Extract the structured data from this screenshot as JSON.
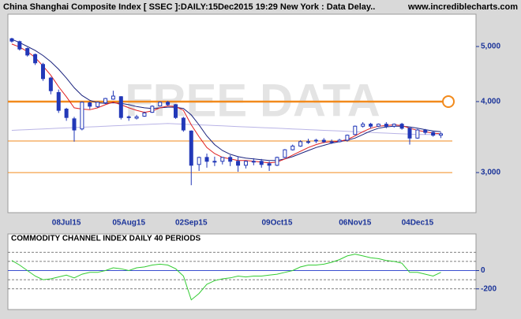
{
  "chart_data": [
    {
      "type": "candlestick",
      "title": "China Shanghai Composite Index [ SSEC ]:DAILY:15Dec2015 19:29 New York : Data Delay..",
      "source": "www.incrediblecharts.com",
      "watermark": "FREE DATA",
      "categories": [
        null,
        null,
        null,
        null,
        null,
        null,
        null,
        "08Jul15",
        null,
        null,
        null,
        null,
        null,
        null,
        null,
        "05Aug15",
        null,
        null,
        null,
        null,
        null,
        null,
        null,
        "02Sep15",
        null,
        null,
        null,
        null,
        null,
        null,
        null,
        null,
        null,
        null,
        "09Oct15",
        null,
        null,
        null,
        null,
        null,
        null,
        null,
        null,
        null,
        "06Nov15",
        null,
        null,
        null,
        null,
        null,
        null,
        null,
        "04Dec15",
        null,
        null,
        null,
        null,
        null,
        null,
        null
      ],
      "open": [
        5160,
        5100,
        4960,
        4840,
        4650,
        4400,
        4150,
        3880,
        3730,
        3580,
        3980,
        3920,
        3980,
        4040,
        4080,
        3760,
        3740,
        3770,
        3830,
        3930,
        3990,
        3950,
        3740,
        3550,
        3100,
        3190,
        3140,
        3140,
        3190,
        3140,
        3090,
        3140,
        3140,
        3110,
        3090,
        3190,
        3290,
        3340,
        3390,
        3410,
        3420,
        3400,
        3400,
        3420,
        3500,
        3620,
        3650,
        3620,
        3650,
        3620,
        3650,
        3590,
        3450,
        3560,
        3530,
        3490,
        null,
        null,
        null,
        null
      ],
      "high": [
        5180,
        5120,
        4980,
        4860,
        4680,
        4420,
        4200,
        3900,
        3760,
        4000,
        4000,
        4000,
        4060,
        4180,
        4090,
        3780,
        3790,
        3840,
        3940,
        4000,
        4010,
        3960,
        3760,
        3560,
        3200,
        3240,
        3200,
        3180,
        3220,
        3200,
        3150,
        3180,
        3170,
        3140,
        3200,
        3300,
        3360,
        3420,
        3440,
        3440,
        3450,
        3430,
        3440,
        3500,
        3630,
        3680,
        3670,
        3660,
        3680,
        3660,
        3670,
        3600,
        3580,
        3580,
        3550,
        3530,
        null,
        null,
        null,
        null
      ],
      "low": [
        5080,
        4920,
        4800,
        4640,
        4350,
        4120,
        3820,
        3700,
        3400,
        3560,
        3880,
        3900,
        3960,
        4030,
        3720,
        3700,
        3720,
        3760,
        3820,
        3920,
        3930,
        3730,
        3540,
        2850,
        3020,
        3060,
        3080,
        3100,
        3080,
        3010,
        3050,
        3090,
        3060,
        3020,
        3080,
        3180,
        3280,
        3330,
        3370,
        3380,
        3380,
        3370,
        3390,
        3400,
        3490,
        3600,
        3590,
        3610,
        3590,
        3600,
        3570,
        3360,
        3440,
        3500,
        3470,
        3450,
        null,
        null,
        null,
        null
      ],
      "close": [
        5110,
        4950,
        4830,
        4680,
        4390,
        4180,
        3860,
        3750,
        3565,
        3990,
        3925,
        3990,
        4050,
        4090,
        3750,
        3750,
        3760,
        3820,
        3925,
        3990,
        3950,
        3750,
        3565,
        3090,
        3190,
        3140,
        3140,
        3190,
        3140,
        3090,
        3140,
        3140,
        3100,
        3090,
        3190,
        3290,
        3340,
        3400,
        3400,
        3420,
        3400,
        3400,
        3420,
        3490,
        3620,
        3650,
        3620,
        3650,
        3620,
        3650,
        3590,
        3450,
        3565,
        3530,
        3490,
        3510,
        null,
        null,
        null,
        null
      ],
      "color": "#2238b8",
      "overlays": [
        {
          "color": "#b9b4e6",
          "values": [
            3560,
            3565,
            3570,
            3575,
            3580,
            3585,
            3590,
            3595,
            3600,
            3605,
            3610,
            3615,
            3620,
            3625,
            3630,
            3635,
            3640,
            3645,
            3650,
            3655,
            3660,
            3655,
            3650,
            3645,
            3640,
            3635,
            3630,
            3625,
            3620,
            3615,
            3610,
            3605,
            3600,
            3595,
            3590,
            3585,
            3580,
            3575,
            3570,
            3565,
            3560,
            3555,
            3550,
            3545,
            3540,
            3535,
            3530,
            3525,
            3520,
            3515,
            3510,
            3505,
            3500,
            3500,
            3500,
            3500,
            null,
            null,
            null,
            null
          ]
        },
        {
          "color": "#1a237e",
          "values": [
            5150,
            5080,
            5000,
            4920,
            4820,
            4700,
            4560,
            4400,
            4230,
            4100,
            4020,
            3980,
            3970,
            3980,
            3970,
            3950,
            3920,
            3900,
            3890,
            3900,
            3910,
            3910,
            3890,
            3790,
            3640,
            3480,
            3360,
            3280,
            3230,
            3200,
            3180,
            3170,
            3160,
            3150,
            3150,
            3170,
            3200,
            3240,
            3280,
            3320,
            3350,
            3380,
            3400,
            3420,
            3450,
            3500,
            3550,
            3590,
            3610,
            3620,
            3620,
            3610,
            3590,
            3570,
            3550,
            3540,
            null,
            null,
            null,
            null
          ]
        },
        {
          "color": "#e02020",
          "values": [
            5050,
            4990,
            4900,
            4780,
            4620,
            4450,
            4250,
            4080,
            3900,
            3880,
            3870,
            3900,
            3950,
            3990,
            3950,
            3900,
            3860,
            3830,
            3850,
            3900,
            3930,
            3920,
            3860,
            3640,
            3470,
            3320,
            3240,
            3190,
            3170,
            3150,
            3150,
            3140,
            3130,
            3120,
            3130,
            3170,
            3220,
            3270,
            3320,
            3360,
            3390,
            3400,
            3405,
            3430,
            3480,
            3540,
            3590,
            3620,
            3630,
            3640,
            3630,
            3590,
            3560,
            3540,
            3520,
            3510,
            null,
            null,
            null,
            null
          ]
        }
      ],
      "levels": [
        4000,
        3410,
        3000
      ],
      "level_color": "#f28a1c",
      "log_scale": true,
      "ylim": [
        2550,
        5700
      ],
      "yticks": [
        {
          "value": 5000,
          "label": "5,000"
        },
        {
          "value": 4000,
          "label": "4,000"
        },
        {
          "value": 3000,
          "label": "3,000"
        }
      ]
    },
    {
      "type": "line",
      "title": "COMMODITY CHANNEL INDEX DAILY 40 PERIODS",
      "values": [
        110,
        60,
        0,
        -60,
        -100,
        -90,
        -70,
        -50,
        -80,
        -40,
        -20,
        -20,
        0,
        30,
        20,
        0,
        30,
        40,
        60,
        70,
        60,
        20,
        -60,
        -320,
        -250,
        -150,
        -110,
        -90,
        -80,
        -60,
        -70,
        -60,
        -60,
        -50,
        -40,
        -20,
        0,
        40,
        60,
        60,
        70,
        90,
        120,
        160,
        180,
        160,
        140,
        130,
        110,
        100,
        80,
        -20,
        -20,
        -40,
        -60,
        -20,
        null,
        null,
        null,
        null
      ],
      "color": "#33cc33",
      "zero_color": "#3a4fd0",
      "reference_lines": [
        200,
        100,
        -100,
        -200
      ],
      "ylim": [
        -400,
        400
      ],
      "yticks": [
        0,
        -200
      ]
    }
  ]
}
